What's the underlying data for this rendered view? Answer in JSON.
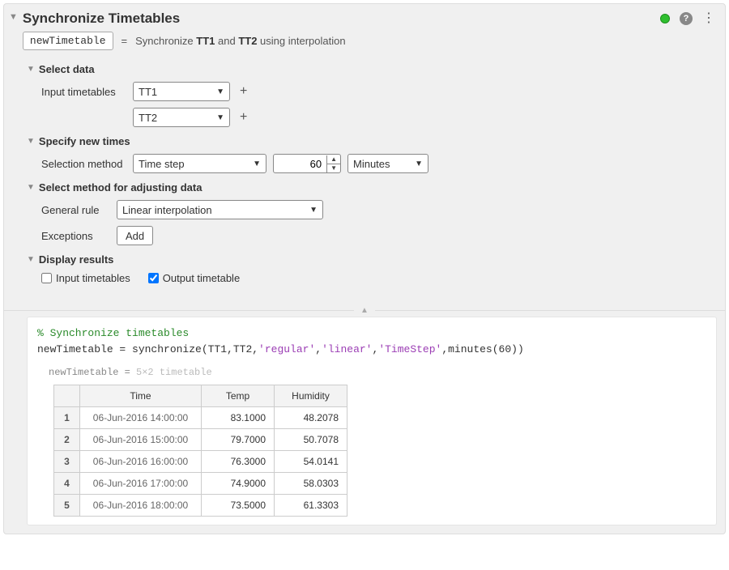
{
  "header": {
    "title": "Synchronize Timetables",
    "output_var": "newTimetable",
    "description_prefix": "Synchronize ",
    "tt1": "TT1",
    "and": " and ",
    "tt2": "TT2",
    "description_suffix": " using interpolation",
    "status_color": "#2fbf2f"
  },
  "sections": {
    "select_data": {
      "title": "Select data",
      "input_label": "Input timetables",
      "dd1": "TT1",
      "dd2": "TT2"
    },
    "specify_times": {
      "title": "Specify new times",
      "method_label": "Selection method",
      "method": "Time step",
      "value": "60",
      "unit": "Minutes"
    },
    "adjust": {
      "title": "Select method for adjusting data",
      "rule_label": "General rule",
      "rule": "Linear interpolation",
      "exceptions_label": "Exceptions",
      "add_btn": "Add"
    },
    "display": {
      "title": "Display results",
      "cb1": "Input timetables",
      "cb2": "Output timetable"
    }
  },
  "code": {
    "comment": "% Synchronize timetables",
    "lhs": "newTimetable = synchronize(TT1,TT2,",
    "s1": "'regular'",
    "s2": "'linear'",
    "s3": "'TimeStep'",
    "tail": ",minutes(60))"
  },
  "output": {
    "varname": "newTimetable",
    "dims": "5×2 timetable",
    "headers": [
      "",
      "Time",
      "Temp",
      "Humidity"
    ],
    "rows": [
      {
        "n": "1",
        "time": "06-Jun-2016 14:00:00",
        "temp": "83.1000",
        "hum": "48.2078"
      },
      {
        "n": "2",
        "time": "06-Jun-2016 15:00:00",
        "temp": "79.7000",
        "hum": "50.7078"
      },
      {
        "n": "3",
        "time": "06-Jun-2016 16:00:00",
        "temp": "76.3000",
        "hum": "54.0141"
      },
      {
        "n": "4",
        "time": "06-Jun-2016 17:00:00",
        "temp": "74.9000",
        "hum": "58.0303"
      },
      {
        "n": "5",
        "time": "06-Jun-2016 18:00:00",
        "temp": "73.5000",
        "hum": "61.3303"
      }
    ]
  }
}
